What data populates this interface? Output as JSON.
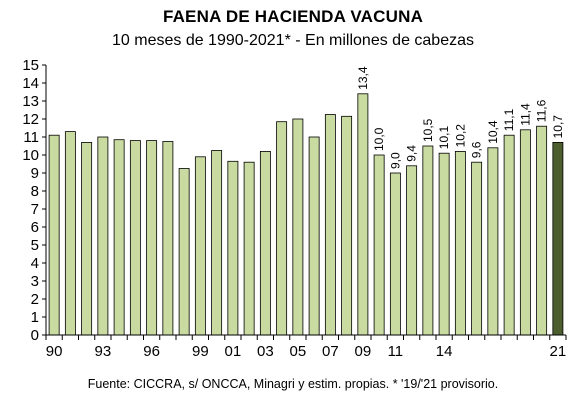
{
  "chart_data": {
    "type": "bar",
    "title": "FAENA DE HACIENDA VACUNA",
    "subtitle": "10 meses de 1990-2021* - En millones de cabezas",
    "source": "Fuente: CICCRA, s/ ONCCA, Minagri y estim. propias. * '19/'21 provisorio.",
    "xlabel": "",
    "ylabel": "",
    "ylim": [
      0,
      15
    ],
    "yticks": [
      0,
      1,
      2,
      3,
      4,
      5,
      6,
      7,
      8,
      9,
      10,
      11,
      12,
      13,
      14,
      15
    ],
    "categories": [
      "1990",
      "1991",
      "1992",
      "1993",
      "1994",
      "1995",
      "1996",
      "1997",
      "1998",
      "1999",
      "2000",
      "2001",
      "2002",
      "2003",
      "2004",
      "2005",
      "2006",
      "2007",
      "2008",
      "2009",
      "2010",
      "2011",
      "2012",
      "2013",
      "2014",
      "2015",
      "2016",
      "2017",
      "2018",
      "2019",
      "2020",
      "2021"
    ],
    "values": [
      11.1,
      11.3,
      10.7,
      11.0,
      10.85,
      10.8,
      10.8,
      10.75,
      9.25,
      9.9,
      10.25,
      9.65,
      9.6,
      10.2,
      11.85,
      12.0,
      11.0,
      12.25,
      12.15,
      13.4,
      10.0,
      9.0,
      9.4,
      10.5,
      10.1,
      10.2,
      9.6,
      10.4,
      11.1,
      11.4,
      11.6,
      10.7
    ],
    "value_labels": [
      "",
      "",
      "",
      "",
      "",
      "",
      "",
      "",
      "",
      "",
      "",
      "",
      "",
      "",
      "",
      "",
      "",
      "",
      "",
      "13,4",
      "10,0",
      "9,0",
      "9,4",
      "10,5",
      "10,1",
      "10,2",
      "9,6",
      "10,4",
      "11,1",
      "11,4",
      "11,6",
      "10,7"
    ],
    "xtick_labels": [
      "90",
      "",
      "",
      "93",
      "",
      "",
      "96",
      "",
      "",
      "99",
      "",
      "01",
      "",
      "03",
      "",
      "05",
      "",
      "07",
      "",
      "09",
      "",
      "11",
      "",
      "",
      "14",
      "",
      "",
      "",
      "",
      "",
      "",
      "21"
    ],
    "highlight_index": 31,
    "colors": {
      "bar": "#c9dba0",
      "bar_highlight": "#4d5e2e",
      "bar_stroke": "#000000"
    },
    "grid": false
  }
}
